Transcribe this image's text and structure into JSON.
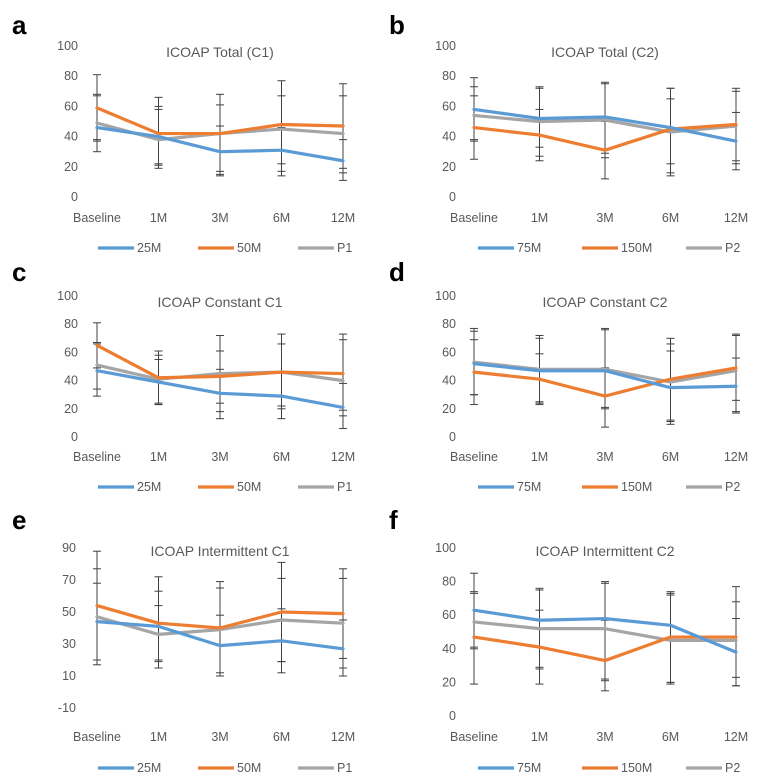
{
  "chart_data": [
    {
      "panel": "a",
      "type": "line",
      "title": "ICOAP Total (C1)",
      "categories": [
        "Baseline",
        "1M",
        "3M",
        "6M",
        "12M"
      ],
      "ylim": [
        0,
        100
      ],
      "yticks": [
        0,
        20,
        40,
        60,
        80,
        100
      ],
      "legend": "bottom",
      "series": [
        {
          "name": "25M",
          "color": "#5B9BD5",
          "values": [
            46,
            40,
            30,
            31,
            24
          ],
          "error_low": [
            37,
            22,
            15,
            14,
            11
          ],
          "error_high": [
            67,
            58,
            47,
            46,
            38
          ]
        },
        {
          "name": "50M",
          "color": "#ED7D31",
          "values": [
            59,
            42,
            42,
            48,
            47
          ],
          "error_low": [
            38,
            21,
            14,
            22,
            19
          ],
          "error_high": [
            81,
            66,
            68,
            77,
            75
          ]
        },
        {
          "name": "P1",
          "color": "#A5A5A5",
          "values": [
            49,
            38,
            42,
            45,
            42
          ],
          "error_low": [
            30,
            19,
            17,
            17,
            16
          ],
          "error_high": [
            68,
            60,
            61,
            67,
            67
          ]
        }
      ]
    },
    {
      "panel": "b",
      "type": "line",
      "title": "ICOAP Total (C2)",
      "categories": [
        "Baseline",
        "1M",
        "3M",
        "6M",
        "12M"
      ],
      "ylim": [
        0,
        100
      ],
      "yticks": [
        0,
        20,
        40,
        60,
        80,
        100
      ],
      "legend": "bottom",
      "series": [
        {
          "name": "75M",
          "color": "#5B9BD5",
          "values": [
            58,
            52,
            53,
            46,
            37
          ],
          "error_low": [
            38,
            33,
            29,
            22,
            18
          ],
          "error_high": [
            79,
            73,
            76,
            72,
            56
          ]
        },
        {
          "name": "150M",
          "color": "#ED7D31",
          "values": [
            46,
            41,
            31,
            45,
            48
          ],
          "error_low": [
            25,
            24,
            12,
            16,
            24
          ],
          "error_high": [
            67,
            58,
            50,
            72,
            72
          ]
        },
        {
          "name": "P2",
          "color": "#A5A5A5",
          "values": [
            54,
            50,
            51,
            43,
            47
          ],
          "error_low": [
            37,
            27,
            26,
            14,
            22
          ],
          "error_high": [
            73,
            72,
            75,
            65,
            70
          ]
        }
      ]
    },
    {
      "panel": "c",
      "type": "line",
      "title": "ICOAP Constant C1",
      "categories": [
        "Baseline",
        "1M",
        "3M",
        "6M",
        "12M"
      ],
      "ylim": [
        0,
        100
      ],
      "yticks": [
        0,
        20,
        40,
        60,
        80,
        100
      ],
      "legend": "bottom",
      "series": [
        {
          "name": "25M",
          "color": "#5B9BD5",
          "values": [
            47,
            39,
            31,
            29,
            21
          ],
          "error_low": [
            29,
            24,
            13,
            13,
            6
          ],
          "error_high": [
            66,
            55,
            48,
            46,
            38
          ]
        },
        {
          "name": "50M",
          "color": "#ED7D31",
          "values": [
            65,
            42,
            43,
            46,
            45
          ],
          "error_low": [
            49,
            23,
            18,
            22,
            19
          ],
          "error_high": [
            81,
            61,
            72,
            73,
            73
          ]
        },
        {
          "name": "P1",
          "color": "#A5A5A5",
          "values": [
            51,
            41,
            45,
            46,
            40
          ],
          "error_low": [
            34,
            23,
            24,
            20,
            15
          ],
          "error_high": [
            67,
            58,
            61,
            66,
            69
          ]
        }
      ]
    },
    {
      "panel": "d",
      "type": "line",
      "title": "ICOAP Constant C2",
      "categories": [
        "Baseline",
        "1M",
        "3M",
        "6M",
        "12M"
      ],
      "ylim": [
        0,
        100
      ],
      "yticks": [
        0,
        20,
        40,
        60,
        80,
        100
      ],
      "legend": "bottom",
      "series": [
        {
          "name": "75M",
          "color": "#5B9BD5",
          "values": [
            52,
            47,
            47,
            35,
            36
          ],
          "error_low": [
            30,
            24,
            20,
            9,
            18
          ],
          "error_high": [
            77,
            70,
            76,
            61,
            56
          ]
        },
        {
          "name": "150M",
          "color": "#ED7D31",
          "values": [
            46,
            41,
            29,
            41,
            49
          ],
          "error_low": [
            23,
            23,
            7,
            12,
            26
          ],
          "error_high": [
            69,
            59,
            49,
            70,
            72
          ]
        },
        {
          "name": "P2",
          "color": "#A5A5A5",
          "values": [
            53,
            48,
            48,
            39,
            47
          ],
          "error_low": [
            30,
            25,
            21,
            11,
            17
          ],
          "error_high": [
            75,
            72,
            77,
            66,
            73
          ]
        }
      ]
    },
    {
      "panel": "e",
      "type": "line",
      "title": "ICOAP Intermittent C1",
      "categories": [
        "Baseline",
        "1M",
        "3M",
        "6M",
        "12M"
      ],
      "ylim": [
        -10,
        90
      ],
      "yticks": [
        -10,
        10,
        30,
        50,
        70,
        90
      ],
      "legend": "bottom",
      "series": [
        {
          "name": "25M",
          "color": "#5B9BD5",
          "values": [
            44,
            41,
            29,
            32,
            27
          ],
          "error_low": [
            20,
            19,
            10,
            12,
            10
          ],
          "error_high": [
            68,
            63,
            48,
            52,
            45
          ]
        },
        {
          "name": "50M",
          "color": "#ED7D31",
          "values": [
            54,
            43,
            40,
            50,
            49
          ],
          "error_low": [
            20,
            15,
            10,
            19,
            21
          ],
          "error_high": [
            88,
            72,
            69,
            81,
            77
          ]
        },
        {
          "name": "P1",
          "color": "#A5A5A5",
          "values": [
            47,
            36,
            39,
            45,
            43
          ],
          "error_low": [
            17,
            20,
            12,
            19,
            15
          ],
          "error_high": [
            77,
            54,
            65,
            71,
            71
          ]
        }
      ]
    },
    {
      "panel": "f",
      "type": "line",
      "title": "ICOAP Intermittent C2",
      "categories": [
        "Baseline",
        "1M",
        "3M",
        "6M",
        "12M"
      ],
      "ylim": [
        0,
        100
      ],
      "yticks": [
        0,
        20,
        40,
        60,
        80,
        100
      ],
      "legend": "bottom",
      "series": [
        {
          "name": "75M",
          "color": "#5B9BD5",
          "values": [
            63,
            57,
            58,
            54,
            38
          ],
          "error_low": [
            41,
            28,
            21,
            19,
            18
          ],
          "error_high": [
            85,
            76,
            80,
            74,
            68
          ]
        },
        {
          "name": "150M",
          "color": "#ED7D31",
          "values": [
            47,
            41,
            33,
            47,
            47
          ],
          "error_low": [
            19,
            19,
            15,
            20,
            18
          ],
          "error_high": [
            74,
            63,
            57,
            73,
            77
          ]
        },
        {
          "name": "P2",
          "color": "#A5A5A5",
          "values": [
            56,
            52,
            52,
            45,
            45
          ],
          "error_low": [
            40,
            29,
            22,
            20,
            23
          ],
          "error_high": [
            73,
            75,
            79,
            72,
            58
          ]
        }
      ]
    }
  ]
}
